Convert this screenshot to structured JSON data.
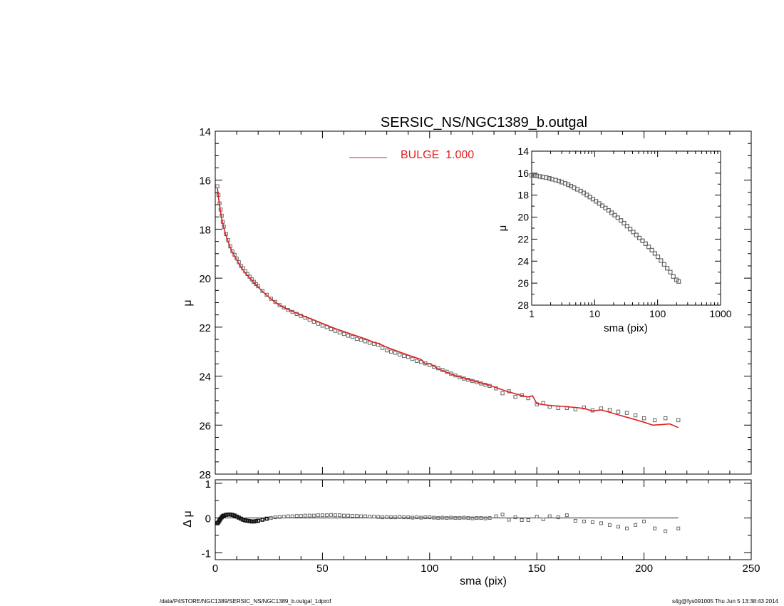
{
  "footer": {
    "path": "/data/P4STORE/NGC1389/SERSIC_NS/NGC1389_b.outgal_1dprof",
    "stamp": "s4g@fys091005  Thu Jun  5 13:38:43 2014"
  },
  "colors": {
    "model": "#e02020",
    "data": "#666666",
    "axis": "#000000"
  },
  "chart_data": [
    {
      "type": "scatter",
      "title": "SERSIC_NS/NGC1389_b.outgal",
      "xlabel": "",
      "ylabel": "μ",
      "xlim": [
        0,
        250
      ],
      "ylim": [
        28,
        14
      ],
      "y_inverted": true,
      "yticks": [
        14,
        16,
        18,
        20,
        22,
        24,
        26,
        28
      ],
      "legend": {
        "placement": "top-center",
        "entries": [
          {
            "label": "BULGE  1.000",
            "color": "#e02020"
          }
        ]
      },
      "series": [
        {
          "name": "data",
          "marker": "square",
          "x": [
            1,
            1.5,
            2,
            2.5,
            3,
            3.5,
            4,
            5,
            6,
            7,
            8,
            9,
            10,
            11,
            12,
            13,
            14,
            15,
            16,
            17,
            18,
            19,
            20,
            22,
            24,
            26,
            28,
            30,
            32,
            34,
            36,
            38,
            40,
            42,
            44,
            46,
            48,
            50,
            52,
            54,
            56,
            58,
            60,
            62,
            64,
            66,
            68,
            70,
            72,
            74,
            76,
            78,
            80,
            82,
            84,
            86,
            88,
            90,
            92,
            94,
            96,
            98,
            100,
            102,
            104,
            106,
            108,
            110,
            112,
            114,
            116,
            118,
            120,
            122,
            124,
            126,
            128,
            131,
            134,
            137,
            140,
            143,
            146,
            150,
            153,
            156,
            160,
            164,
            168,
            172,
            176,
            180,
            184,
            188,
            192,
            196,
            200,
            205,
            210,
            216
          ],
          "y": [
            16.25,
            16.6,
            16.95,
            17.2,
            17.45,
            17.7,
            17.9,
            18.2,
            18.45,
            18.7,
            18.9,
            19.05,
            19.2,
            19.35,
            19.5,
            19.6,
            19.72,
            19.83,
            19.94,
            20.05,
            20.15,
            20.24,
            20.33,
            20.52,
            20.68,
            20.84,
            20.97,
            21.1,
            21.2,
            21.3,
            21.38,
            21.46,
            21.54,
            21.62,
            21.7,
            21.78,
            21.86,
            21.94,
            22.0,
            22.08,
            22.15,
            22.22,
            22.28,
            22.35,
            22.4,
            22.48,
            22.52,
            22.58,
            22.64,
            22.68,
            22.72,
            22.85,
            22.95,
            23.0,
            23.05,
            23.12,
            23.18,
            23.22,
            23.3,
            23.38,
            23.42,
            23.48,
            23.55,
            23.62,
            23.68,
            23.75,
            23.82,
            23.9,
            23.97,
            24.05,
            24.1,
            24.15,
            24.2,
            24.25,
            24.3,
            24.35,
            24.4,
            24.5,
            24.7,
            24.62,
            24.85,
            24.78,
            24.9,
            25.15,
            25.1,
            25.25,
            25.3,
            25.3,
            25.35,
            25.28,
            25.4,
            25.32,
            25.38,
            25.45,
            25.5,
            25.6,
            25.72,
            25.8,
            25.72,
            25.8
          ]
        },
        {
          "name": "BULGE  1.000",
          "line": true,
          "x": [
            1,
            1.5,
            2,
            2.5,
            3,
            3.5,
            4,
            5,
            6,
            7,
            8,
            9,
            10,
            12,
            14,
            16,
            18,
            20,
            22,
            24,
            26,
            28,
            30,
            32,
            34,
            36,
            38,
            40,
            42,
            44,
            46,
            48,
            50,
            52,
            54,
            56,
            58,
            60,
            62,
            64,
            66,
            68,
            70,
            72,
            74,
            76,
            77,
            80,
            84,
            88,
            92,
            96,
            98,
            100,
            104,
            108,
            112,
            116,
            120,
            124,
            128,
            132,
            136,
            140,
            144,
            146,
            148,
            150,
            152,
            156,
            160,
            164,
            168,
            172,
            176,
            180,
            184,
            188,
            192,
            196,
            200,
            204,
            208,
            212,
            216
          ],
          "y": [
            16.3,
            16.7,
            17.0,
            17.3,
            17.55,
            17.75,
            17.95,
            18.25,
            18.5,
            18.75,
            18.95,
            19.1,
            19.25,
            19.55,
            19.78,
            19.98,
            20.18,
            20.36,
            20.54,
            20.7,
            20.85,
            20.98,
            21.1,
            21.2,
            21.28,
            21.36,
            21.43,
            21.5,
            21.57,
            21.64,
            21.71,
            21.78,
            21.85,
            21.92,
            21.99,
            22.06,
            22.12,
            22.18,
            22.24,
            22.3,
            22.36,
            22.42,
            22.48,
            22.55,
            22.62,
            22.66,
            22.7,
            22.82,
            22.95,
            23.08,
            23.2,
            23.32,
            23.5,
            23.48,
            23.7,
            23.85,
            23.98,
            24.08,
            24.18,
            24.28,
            24.38,
            24.5,
            24.62,
            24.72,
            24.82,
            24.85,
            24.8,
            25.12,
            25.15,
            25.2,
            25.22,
            25.25,
            25.28,
            25.32,
            25.42,
            25.38,
            25.48,
            25.58,
            25.68,
            25.78,
            25.88,
            26.0,
            25.98,
            25.95,
            26.1
          ]
        }
      ]
    },
    {
      "type": "scatter",
      "title": "",
      "xlabel": "sma (pix)",
      "ylabel": "Δ μ",
      "xlim": [
        0,
        250
      ],
      "ylim": [
        -1,
        1
      ],
      "xticks": [
        0,
        50,
        100,
        150,
        200,
        250
      ],
      "yticks": [
        -1,
        0,
        1
      ],
      "reference_line": {
        "y": 0,
        "x_range": [
          0,
          216
        ]
      },
      "series": [
        {
          "name": "residual",
          "marker": "square",
          "x": [
            1,
            1.5,
            2,
            2.5,
            3,
            3.5,
            4,
            5,
            6,
            7,
            8,
            9,
            10,
            11,
            12,
            13,
            14,
            15,
            16,
            17,
            18,
            19,
            20,
            22,
            24,
            26,
            28,
            30,
            32,
            34,
            36,
            38,
            40,
            42,
            44,
            46,
            48,
            50,
            52,
            54,
            56,
            58,
            60,
            62,
            64,
            66,
            68,
            70,
            72,
            74,
            76,
            78,
            80,
            82,
            84,
            86,
            88,
            90,
            92,
            94,
            96,
            98,
            100,
            102,
            104,
            106,
            108,
            110,
            112,
            114,
            116,
            118,
            120,
            122,
            124,
            126,
            128,
            131,
            134,
            137,
            140,
            143,
            146,
            150,
            153,
            156,
            160,
            164,
            168,
            172,
            176,
            180,
            184,
            188,
            192,
            196,
            200,
            205,
            210,
            216
          ],
          "y": [
            -0.15,
            -0.12,
            -0.07,
            -0.02,
            0.02,
            0.05,
            0.07,
            0.09,
            0.1,
            0.1,
            0.09,
            0.07,
            0.04,
            0.01,
            -0.02,
            -0.05,
            -0.07,
            -0.08,
            -0.09,
            -0.1,
            -0.1,
            -0.09,
            -0.08,
            -0.05,
            -0.02,
            0.0,
            0.02,
            0.03,
            0.04,
            0.05,
            0.05,
            0.06,
            0.06,
            0.07,
            0.07,
            0.07,
            0.08,
            0.08,
            0.08,
            0.09,
            0.08,
            0.08,
            0.07,
            0.07,
            0.06,
            0.06,
            0.05,
            0.05,
            0.04,
            0.04,
            0.03,
            0.02,
            0.03,
            0.02,
            0.02,
            0.03,
            0.02,
            0.02,
            0.01,
            0.02,
            0.01,
            0.02,
            0.02,
            0.01,
            0.0,
            0.01,
            0.0,
            0.01,
            0.0,
            0.0,
            0.01,
            0.0,
            -0.01,
            0.0,
            0.0,
            -0.01,
            0.0,
            0.05,
            0.1,
            -0.05,
            0.02,
            -0.06,
            -0.06,
            0.04,
            -0.04,
            0.05,
            0.02,
            0.08,
            -0.08,
            -0.1,
            -0.12,
            -0.15,
            -0.2,
            -0.25,
            -0.3,
            -0.2,
            -0.1,
            -0.3,
            -0.38,
            -0.3
          ]
        }
      ]
    },
    {
      "type": "scatter",
      "title": "",
      "xlabel": "sma (pix)",
      "ylabel": "μ",
      "x_scale": "log",
      "xlim": [
        1,
        1000
      ],
      "xticks": [
        1,
        10,
        100,
        1000
      ],
      "ylim": [
        28,
        14
      ],
      "y_inverted": true,
      "yticks": [
        14,
        16,
        18,
        20,
        22,
        24,
        26,
        28
      ],
      "series": [
        {
          "name": "data",
          "marker": "square",
          "x": [
            1,
            1.1,
            1.2,
            1.35,
            1.5,
            1.7,
            1.9,
            2.1,
            2.4,
            2.7,
            3,
            3.4,
            3.8,
            4.2,
            4.7,
            5.3,
            6,
            6.7,
            7.5,
            8.4,
            9.4,
            10.5,
            11.8,
            13.2,
            14.8,
            16.6,
            18.6,
            20.8,
            23.3,
            26.1,
            29.2,
            32.7,
            36.6,
            41,
            45.9,
            51.4,
            57.6,
            64.5,
            72.2,
            80.9,
            90.6,
            101,
            113,
            127,
            142,
            159,
            178,
            199,
            216
          ],
          "y": [
            16.2,
            16.22,
            16.25,
            16.3,
            16.35,
            16.4,
            16.47,
            16.55,
            16.63,
            16.72,
            16.82,
            16.93,
            17.05,
            17.18,
            17.32,
            17.47,
            17.63,
            17.8,
            17.98,
            18.17,
            18.36,
            18.56,
            18.76,
            18.96,
            19.17,
            19.38,
            19.6,
            19.82,
            20.05,
            20.3,
            20.55,
            20.82,
            21.08,
            21.35,
            21.62,
            21.9,
            22.15,
            22.42,
            22.7,
            23.0,
            23.3,
            23.6,
            23.95,
            24.3,
            24.65,
            25.0,
            25.4,
            25.7,
            25.85
          ]
        }
      ]
    }
  ]
}
